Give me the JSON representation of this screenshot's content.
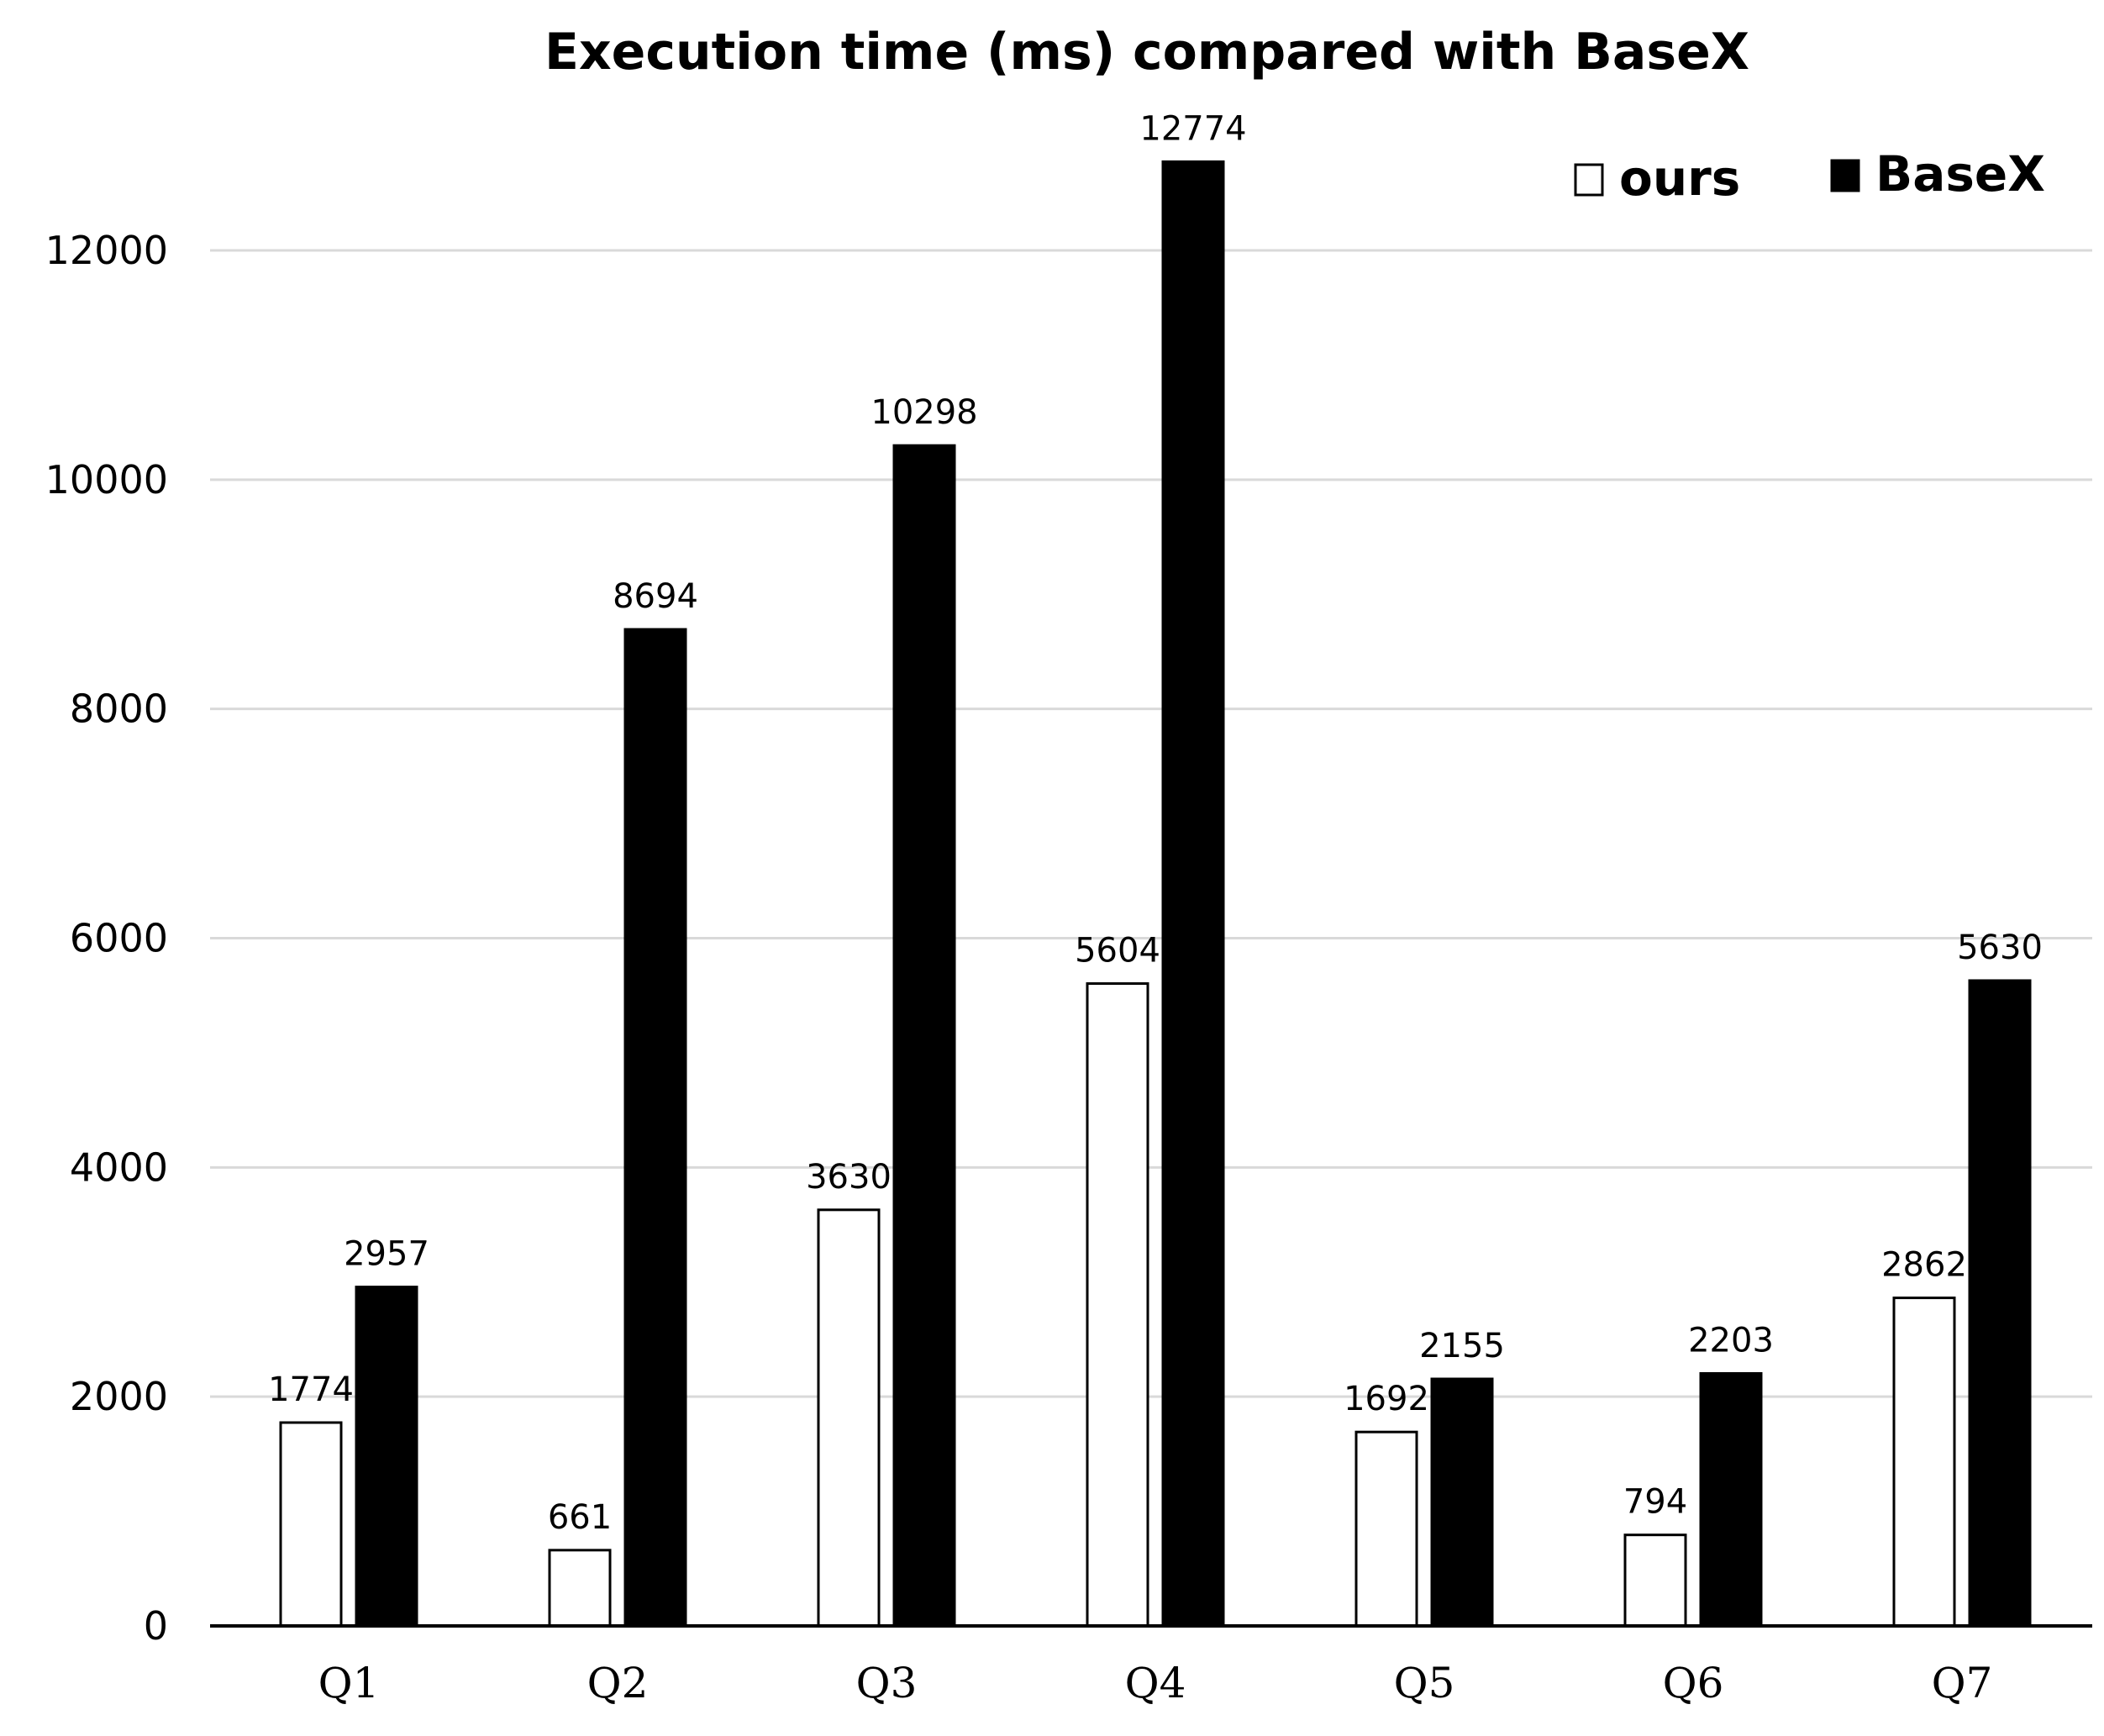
{
  "chart_data": {
    "type": "bar",
    "title": "Execution time (ms) compared with BaseX",
    "xlabel": "",
    "ylabel": "",
    "categories": [
      "Q1",
      "Q2",
      "Q3",
      "Q4",
      "Q5",
      "Q6",
      "Q7"
    ],
    "series": [
      {
        "name": "ours",
        "values": [
          1774,
          661,
          3630,
          5604,
          1692,
          794,
          2862
        ],
        "color": "#ffffff",
        "stroke": "#000000"
      },
      {
        "name": "BaseX",
        "values": [
          2957,
          8694,
          10298,
          12774,
          2155,
          2203,
          5630
        ],
        "color": "#000000",
        "stroke": "#000000"
      }
    ],
    "ylim": [
      0,
      12000
    ],
    "yticks": [
      0,
      2000,
      4000,
      6000,
      8000,
      10000,
      12000
    ],
    "grid": true,
    "legend_position": "top-right",
    "data_labels": true
  }
}
